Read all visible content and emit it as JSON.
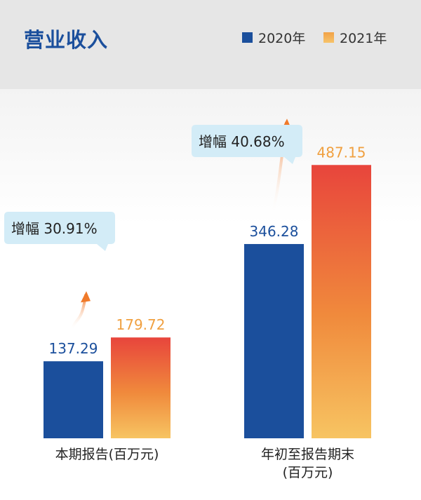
{
  "title": "营业收入",
  "legend": [
    {
      "label": "2020年",
      "color": "#1b4f9c"
    },
    {
      "label": "2021年",
      "color": "#f08a3c"
    }
  ],
  "chart_data": {
    "type": "bar",
    "title": "营业收入",
    "categories": [
      "本期报告(百万元)",
      "年初至报告期末(百万元)"
    ],
    "category_lines": [
      [
        "本期报告(百万元)"
      ],
      [
        "年初至报告期末",
        "(百万元)"
      ]
    ],
    "series": [
      {
        "name": "2020年",
        "values": [
          137.29,
          346.28
        ],
        "labels": [
          "137.29",
          "346.28"
        ],
        "color": "#1b4f9c"
      },
      {
        "name": "2021年",
        "values": [
          179.72,
          487.15
        ],
        "labels": [
          "179.72",
          "487.15"
        ],
        "color_top": "#e8453c",
        "color_bottom": "#f7c462"
      }
    ],
    "annotations": [
      "增幅 30.91%",
      "增幅 40.68%"
    ],
    "grid": false,
    "legend_position": "top-right"
  }
}
